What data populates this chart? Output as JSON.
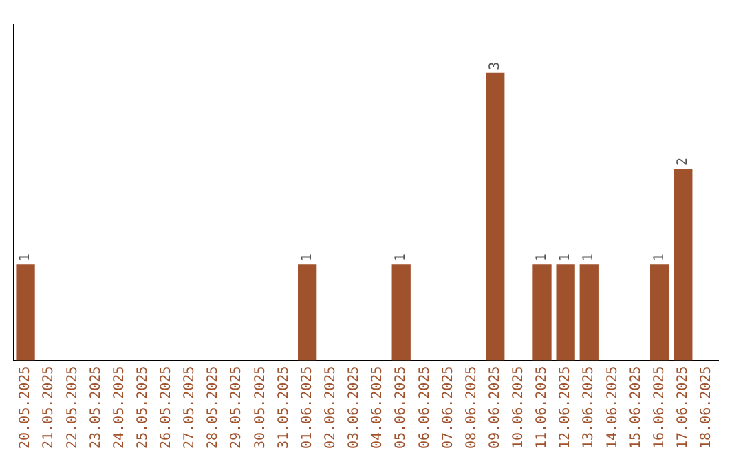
{
  "chart_data": {
    "type": "bar",
    "categories": [
      "20.05.2025",
      "21.05.2025",
      "22.05.2025",
      "23.05.2025",
      "24.05.2025",
      "25.05.2025",
      "26.05.2025",
      "27.05.2025",
      "28.05.2025",
      "29.05.2025",
      "30.05.2025",
      "31.05.2025",
      "01.06.2025",
      "02.06.2025",
      "03.06.2025",
      "04.06.2025",
      "05.06.2025",
      "06.06.2025",
      "07.06.2025",
      "08.06.2025",
      "09.06.2025",
      "10.06.2025",
      "11.06.2025",
      "12.06.2025",
      "13.06.2025",
      "14.06.2025",
      "15.06.2025",
      "16.06.2025",
      "17.06.2025",
      "18.06.2025"
    ],
    "values": [
      1,
      null,
      null,
      null,
      null,
      null,
      null,
      null,
      null,
      null,
      null,
      null,
      1,
      null,
      null,
      null,
      1,
      null,
      null,
      null,
      3,
      null,
      1,
      1,
      1,
      null,
      null,
      1,
      2,
      null
    ],
    "color": "#a0522d",
    "data_labels": true,
    "grid": false,
    "legend": false,
    "tick_labels": "x"
  }
}
